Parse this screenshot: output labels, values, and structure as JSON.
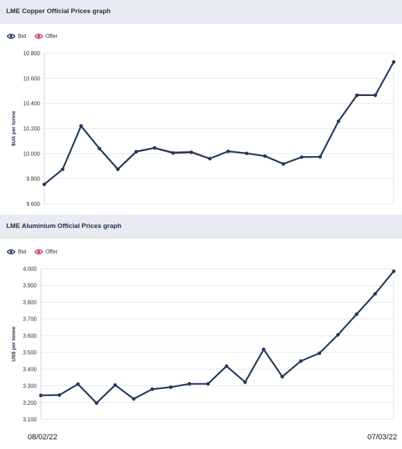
{
  "colors": {
    "bid": "#233a5e",
    "offer": "#d9364f",
    "grid": "#e3e6ea",
    "header_bg": "#e8ecf0"
  },
  "legend": {
    "bid_label": "Bid",
    "offer_label": "Offer",
    "bid_icon": "eye-icon",
    "offer_icon": "eye-icon"
  },
  "date_range": {
    "start": "08/02/22",
    "end": "07/03/22"
  },
  "panels": [
    {
      "title": "LME Copper Official Prices graph"
    },
    {
      "title": "LME Aluminium Official Prices graph"
    }
  ],
  "chart_data": [
    {
      "type": "line",
      "title": "LME Copper Official Prices graph",
      "xlabel": "",
      "ylabel": "$US per tonne",
      "ylim": [
        9600,
        10800
      ],
      "yticks": [
        9600,
        9800,
        10000,
        10200,
        10400,
        10600,
        10800
      ],
      "ytick_labels": [
        "9.600",
        "9.800",
        "10.000",
        "10.200",
        "10.400",
        "10.600",
        "10.800"
      ],
      "grid": true,
      "legend_position": "top-left",
      "series": [
        {
          "name": "Bid",
          "values": [
            9755,
            9875,
            10220,
            10040,
            9875,
            10015,
            10045,
            10005,
            10010,
            9960,
            10018,
            10002,
            9980,
            9918,
            9972,
            9974,
            10258,
            10465,
            10465,
            10730
          ]
        },
        {
          "name": "Offer",
          "values": [
            9757,
            9877,
            10222,
            10042,
            9880,
            10020,
            10047,
            10012,
            10017,
            9962,
            10020,
            10004,
            9982,
            9920,
            9974,
            9976,
            10260,
            10470,
            10468,
            10732
          ]
        }
      ]
    },
    {
      "type": "line",
      "title": "LME Aluminium Official Prices graph",
      "xlabel": "",
      "ylabel": "US$ per tonne",
      "ylim": [
        3100,
        4000
      ],
      "yticks": [
        3100,
        3200,
        3300,
        3400,
        3500,
        3600,
        3700,
        3800,
        3900,
        4000
      ],
      "ytick_labels": [
        "3.100",
        "3.200",
        "3.300",
        "3.400",
        "3.500",
        "3.600",
        "3.700",
        "3.800",
        "3.900",
        "4.000"
      ],
      "grid": true,
      "legend_position": "top-left",
      "series": [
        {
          "name": "Bid",
          "values": [
            3243,
            3245,
            3310,
            3197,
            3305,
            3222,
            3280,
            3292,
            3312,
            3312,
            3418,
            3322,
            3518,
            3355,
            3448,
            3495,
            3605,
            3728,
            3850,
            3985
          ]
        },
        {
          "name": "Offer",
          "values": [
            3244,
            3246,
            3311,
            3198,
            3306,
            3223,
            3281,
            3293,
            3313,
            3313,
            3419,
            3323,
            3519,
            3356,
            3449,
            3496,
            3606,
            3729,
            3851,
            3986
          ]
        }
      ]
    }
  ]
}
